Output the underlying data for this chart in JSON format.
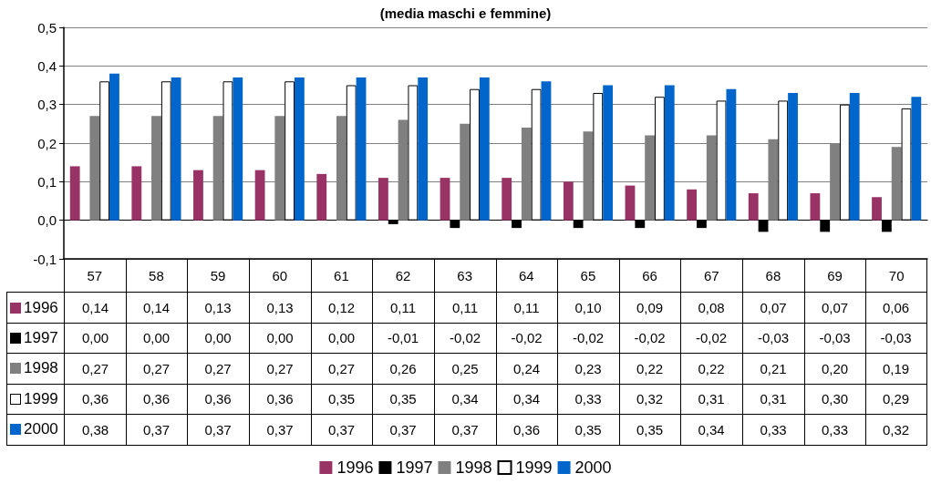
{
  "chart_data": {
    "type": "bar",
    "title": "(media maschi e femmine)",
    "categories": [
      "57",
      "58",
      "59",
      "60",
      "61",
      "62",
      "63",
      "64",
      "65",
      "66",
      "67",
      "68",
      "69",
      "70"
    ],
    "series": [
      {
        "name": "1996",
        "color": "#993366",
        "values": [
          0.14,
          0.14,
          0.13,
          0.13,
          0.12,
          0.11,
          0.11,
          0.11,
          0.1,
          0.09,
          0.08,
          0.07,
          0.07,
          0.06
        ],
        "value_labels": [
          "0,14",
          "0,14",
          "0,13",
          "0,13",
          "0,12",
          "0,11",
          "0,11",
          "0,11",
          "0,10",
          "0,09",
          "0,08",
          "0,07",
          "0,07",
          "0,06"
        ]
      },
      {
        "name": "1997",
        "color": "#000000",
        "values": [
          0,
          0,
          0,
          0,
          0,
          -0.01,
          -0.02,
          -0.02,
          -0.02,
          -0.02,
          -0.02,
          -0.03,
          -0.03,
          -0.03
        ],
        "value_labels": [
          "0,00",
          "0,00",
          "0,00",
          "0,00",
          "0,00",
          "-0,01",
          "-0,02",
          "-0,02",
          "-0,02",
          "-0,02",
          "-0,02",
          "-0,03",
          "-0,03",
          "-0,03"
        ]
      },
      {
        "name": "1998",
        "color": "#808080",
        "values": [
          0.27,
          0.27,
          0.27,
          0.27,
          0.27,
          0.26,
          0.25,
          0.24,
          0.23,
          0.22,
          0.22,
          0.21,
          0.2,
          0.19
        ],
        "value_labels": [
          "0,27",
          "0,27",
          "0,27",
          "0,27",
          "0,27",
          "0,26",
          "0,25",
          "0,24",
          "0,23",
          "0,22",
          "0,22",
          "0,21",
          "0,20",
          "0,19"
        ]
      },
      {
        "name": "1999",
        "color": "#ffffff",
        "values": [
          0.36,
          0.36,
          0.36,
          0.36,
          0.35,
          0.35,
          0.34,
          0.34,
          0.33,
          0.32,
          0.31,
          0.31,
          0.3,
          0.29
        ],
        "value_labels": [
          "0,36",
          "0,36",
          "0,36",
          "0,36",
          "0,35",
          "0,35",
          "0,34",
          "0,34",
          "0,33",
          "0,32",
          "0,31",
          "0,31",
          "0,30",
          "0,29"
        ]
      },
      {
        "name": "2000",
        "color": "#0066cc",
        "values": [
          0.38,
          0.37,
          0.37,
          0.37,
          0.37,
          0.37,
          0.37,
          0.36,
          0.35,
          0.35,
          0.34,
          0.33,
          0.33,
          0.32
        ],
        "value_labels": [
          "0,38",
          "0,37",
          "0,37",
          "0,37",
          "0,37",
          "0,37",
          "0,37",
          "0,36",
          "0,35",
          "0,35",
          "0,34",
          "0,33",
          "0,33",
          "0,32"
        ]
      }
    ],
    "ylim": [
      -0.1,
      0.5
    ],
    "yticks": [
      {
        "value": -0.1,
        "label": "-0,1"
      },
      {
        "value": 0,
        "label": "0,0"
      },
      {
        "value": 0.1,
        "label": "0,1"
      },
      {
        "value": 0.2,
        "label": "0,2"
      },
      {
        "value": 0.3,
        "label": "0,3"
      },
      {
        "value": 0.4,
        "label": "0,4"
      },
      {
        "value": 0.5,
        "label": "0,5"
      }
    ],
    "grid": "y",
    "legend": "bottom"
  }
}
